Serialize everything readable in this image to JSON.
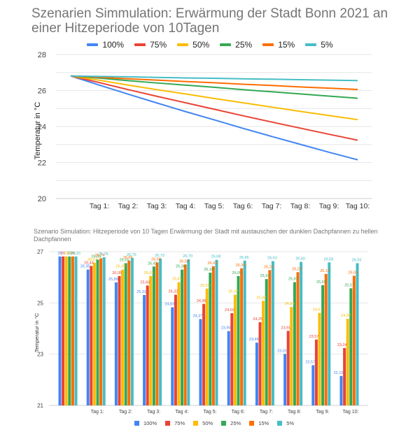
{
  "chart_data": [
    {
      "type": "line",
      "title": "Szenarien Simmulation: Erwärmung der Stadt Bonn 2021 an einer Hitzeperiode von 10Tagen",
      "xlabel": "",
      "ylabel": "Temperatur in °C",
      "ylim": [
        20,
        28
      ],
      "yticks": [
        "20",
        "22",
        "24",
        "26",
        "28"
      ],
      "grid": true,
      "legend": "top",
      "categories": [
        "",
        "Tag 1:",
        "Tag 2:",
        "Tag 3:",
        "Tag 4:",
        "Tag 5:",
        "Tag 6:",
        "Tag 7:",
        "Tag 8:",
        "Tag 9:",
        "Tag 10:"
      ],
      "series": [
        {
          "name": "100%",
          "color": "#4285f4",
          "values": [
            26.81,
            26.3,
            25.8,
            25.31,
            24.83,
            24.37,
            23.9,
            23.45,
            23.01,
            22.57,
            22.15
          ]
        },
        {
          "name": "75%",
          "color": "#ea4335",
          "values": [
            26.81,
            26.44,
            26.05,
            25.68,
            25.32,
            24.96,
            24.6,
            24.25,
            23.91,
            23.57,
            23.24
          ]
        },
        {
          "name": "50%",
          "color": "#fbbc04",
          "values": [
            26.81,
            26.57,
            26.3,
            26.05,
            25.81,
            25.56,
            25.32,
            25.08,
            24.84,
            24.61,
            24.38
          ]
        },
        {
          "name": "25%",
          "color": "#34a853",
          "values": [
            26.81,
            26.69,
            26.55,
            26.42,
            26.3,
            26.18,
            26.05,
            25.93,
            25.81,
            25.69,
            25.57
          ]
        },
        {
          "name": "15%",
          "color": "#ff6d01",
          "values": [
            26.81,
            26.74,
            26.65,
            26.58,
            26.5,
            26.43,
            26.35,
            26.28,
            26.2,
            26.13,
            26.06
          ]
        },
        {
          "name": "5%",
          "color": "#46bdc6",
          "values": [
            26.81,
            26.78,
            26.76,
            26.73,
            26.7,
            26.68,
            26.65,
            26.63,
            26.6,
            26.58,
            26.55
          ]
        }
      ]
    },
    {
      "type": "bar",
      "title": "Szenario Simulation: Hitzeperiode von 10 Tagen Erwärmung der Stadt mit austauschen der dunklen Dachpfannen zu hellen Dachpfannen",
      "xlabel": "",
      "ylabel": "Temperatur in °C",
      "ylim": [
        21,
        27
      ],
      "yticks": [
        "21",
        "23",
        "25",
        "27"
      ],
      "grid": true,
      "legend": "bottom",
      "categories": [
        "",
        "Tag 1:",
        "Tag 2:",
        "Tag 3:",
        "Tag 4:",
        "Tag 5:",
        "Tag 6:",
        "Tag 7:",
        "Tag 8:",
        "Tag 9:",
        "Tag 10:"
      ],
      "series": [
        {
          "name": "100%",
          "color": "#4285f4",
          "values": [
            26.81,
            26.3,
            25.8,
            25.31,
            24.83,
            24.37,
            23.9,
            23.45,
            23.01,
            22.57,
            22.15
          ],
          "labels": [
            "26,81",
            "26,30",
            "25,80",
            "25,31",
            "24,83",
            "24,37",
            "23,90",
            "23,45",
            "23,01",
            "22,57",
            "22,15"
          ]
        },
        {
          "name": "75%",
          "color": "#ea4335",
          "values": [
            26.81,
            26.44,
            26.05,
            25.68,
            25.32,
            24.96,
            24.6,
            24.25,
            23.91,
            23.57,
            23.24
          ],
          "labels": [
            "26,81",
            "26,44",
            "26,05",
            "25,68",
            "25,32",
            "24,96",
            "24,60",
            "24,25",
            "23,91",
            "23,57",
            "23,24"
          ]
        },
        {
          "name": "50%",
          "color": "#fbbc04",
          "values": [
            26.81,
            26.57,
            26.3,
            26.05,
            25.81,
            25.56,
            25.32,
            25.08,
            24.84,
            24.61,
            24.38
          ],
          "labels": [
            "26,81",
            "26,57",
            "26,30",
            "26,05",
            "25,81",
            "25,56",
            "25,32",
            "25,08",
            "24,84",
            "24,61",
            "24,38"
          ]
        },
        {
          "name": "25%",
          "color": "#34a853",
          "values": [
            26.81,
            26.69,
            26.55,
            26.42,
            26.3,
            26.18,
            26.05,
            25.93,
            25.81,
            25.69,
            25.57
          ],
          "labels": [
            "26,81",
            "26,69",
            "26,55",
            "26,42",
            "26,30",
            "26,18",
            "26,05",
            "25,93",
            "25,81",
            "25,69",
            "25,57"
          ]
        },
        {
          "name": "15%",
          "color": "#ff6d01",
          "values": [
            26.81,
            26.74,
            26.65,
            26.58,
            26.5,
            26.43,
            26.35,
            26.28,
            26.2,
            26.13,
            26.06
          ],
          "labels": [
            "26,81",
            "26,74",
            "26,65",
            "26,58",
            "26,50",
            "26,43",
            "26,35",
            "26,28",
            "26,20",
            "26,13",
            "26,06"
          ]
        },
        {
          "name": "5%",
          "color": "#46bdc6",
          "values": [
            26.81,
            26.78,
            26.76,
            26.73,
            26.7,
            26.68,
            26.65,
            26.63,
            26.6,
            26.58,
            26.55
          ],
          "labels": [
            "26,81",
            "26,78",
            "26,76",
            "26,73",
            "26,70",
            "26,68",
            "26,65",
            "26,63",
            "26,60",
            "26,58",
            "26,55"
          ]
        }
      ]
    }
  ]
}
